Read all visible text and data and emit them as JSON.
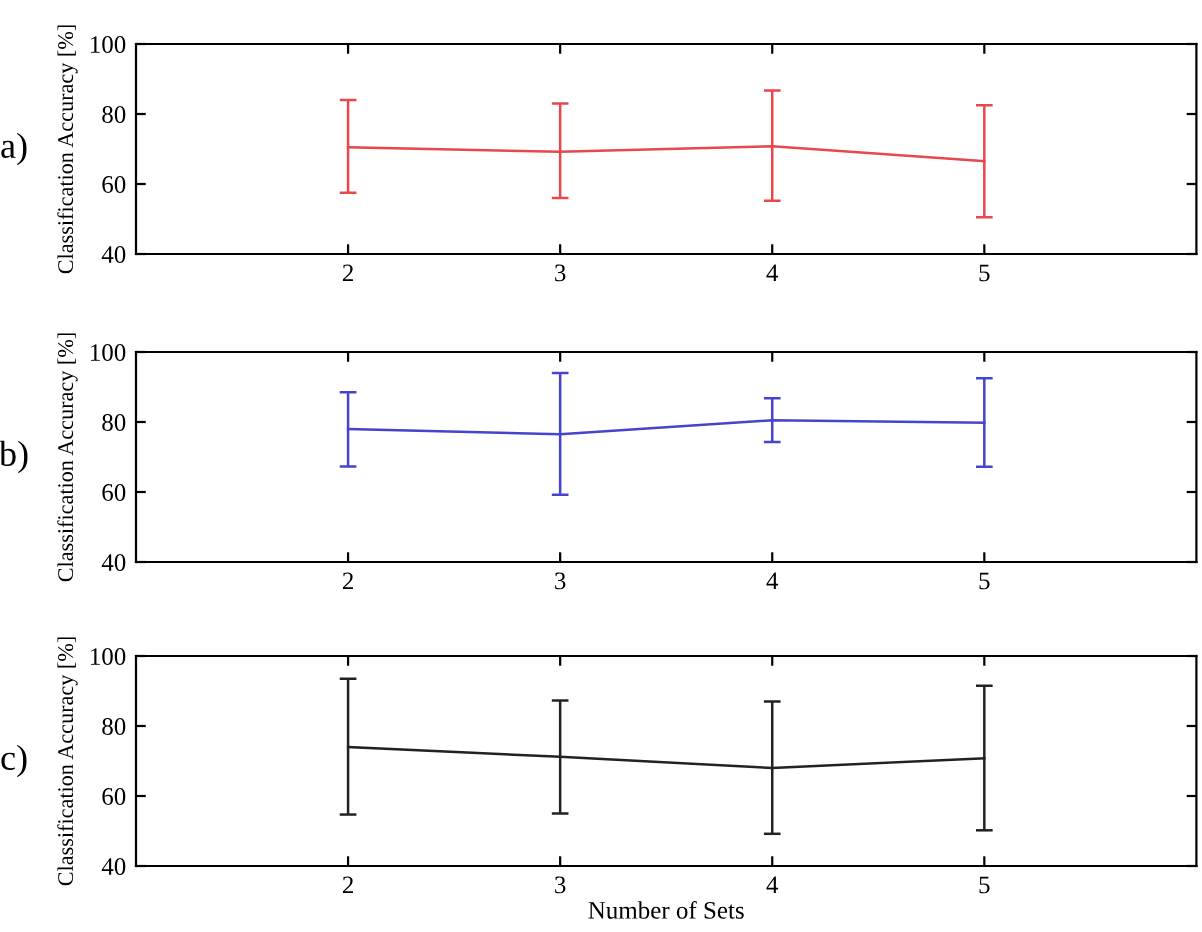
{
  "chart_data": [
    {
      "type": "line",
      "ylabel": "Classification Accuracy [%]",
      "annotations": [
        "a)"
      ],
      "x": [
        2,
        3,
        4,
        5
      ],
      "xlim": [
        1,
        6
      ],
      "xticks": [
        2,
        3,
        4,
        5
      ],
      "ylim": [
        40,
        100
      ],
      "yticks": [
        40,
        60,
        80,
        100
      ],
      "grid": false,
      "legend": false,
      "series": [
        {
          "color": "#e8474c",
          "values": [
            70.5,
            69.2,
            70.8,
            66.5
          ],
          "errors": [
            [
              57.5,
              84
            ],
            [
              56,
              83
            ],
            [
              55.2,
              86.7
            ],
            [
              50.5,
              82.5
            ]
          ]
        }
      ]
    },
    {
      "type": "line",
      "ylabel": "Classification Accuracy [%]",
      "annotations": [
        "b)"
      ],
      "x": [
        2,
        3,
        4,
        5
      ],
      "xlim": [
        1,
        6
      ],
      "xticks": [
        2,
        3,
        4,
        5
      ],
      "ylim": [
        40,
        100
      ],
      "yticks": [
        40,
        60,
        80,
        100
      ],
      "grid": false,
      "legend": false,
      "series": [
        {
          "color": "#4444cc",
          "values": [
            78,
            76.5,
            80.5,
            79.8
          ],
          "errors": [
            [
              67.3,
              88.5
            ],
            [
              59.2,
              94
            ],
            [
              74.3,
              86.8
            ],
            [
              67.2,
              92.5
            ]
          ]
        }
      ]
    },
    {
      "type": "line",
      "xlabel": "Number of Sets",
      "ylabel": "Classification Accuracy [%]",
      "annotations": [
        "c)"
      ],
      "x": [
        2,
        3,
        4,
        5
      ],
      "xlim": [
        1,
        6
      ],
      "xticks": [
        2,
        3,
        4,
        5
      ],
      "ylim": [
        40,
        100
      ],
      "yticks": [
        40,
        60,
        80,
        100
      ],
      "grid": false,
      "legend": false,
      "series": [
        {
          "color": "#222222",
          "values": [
            74,
            71.2,
            68,
            70.8
          ],
          "errors": [
            [
              54.7,
              93.5
            ],
            [
              55,
              87.3
            ],
            [
              49.2,
              87
            ],
            [
              50.2,
              91.5
            ]
          ]
        }
      ]
    }
  ]
}
